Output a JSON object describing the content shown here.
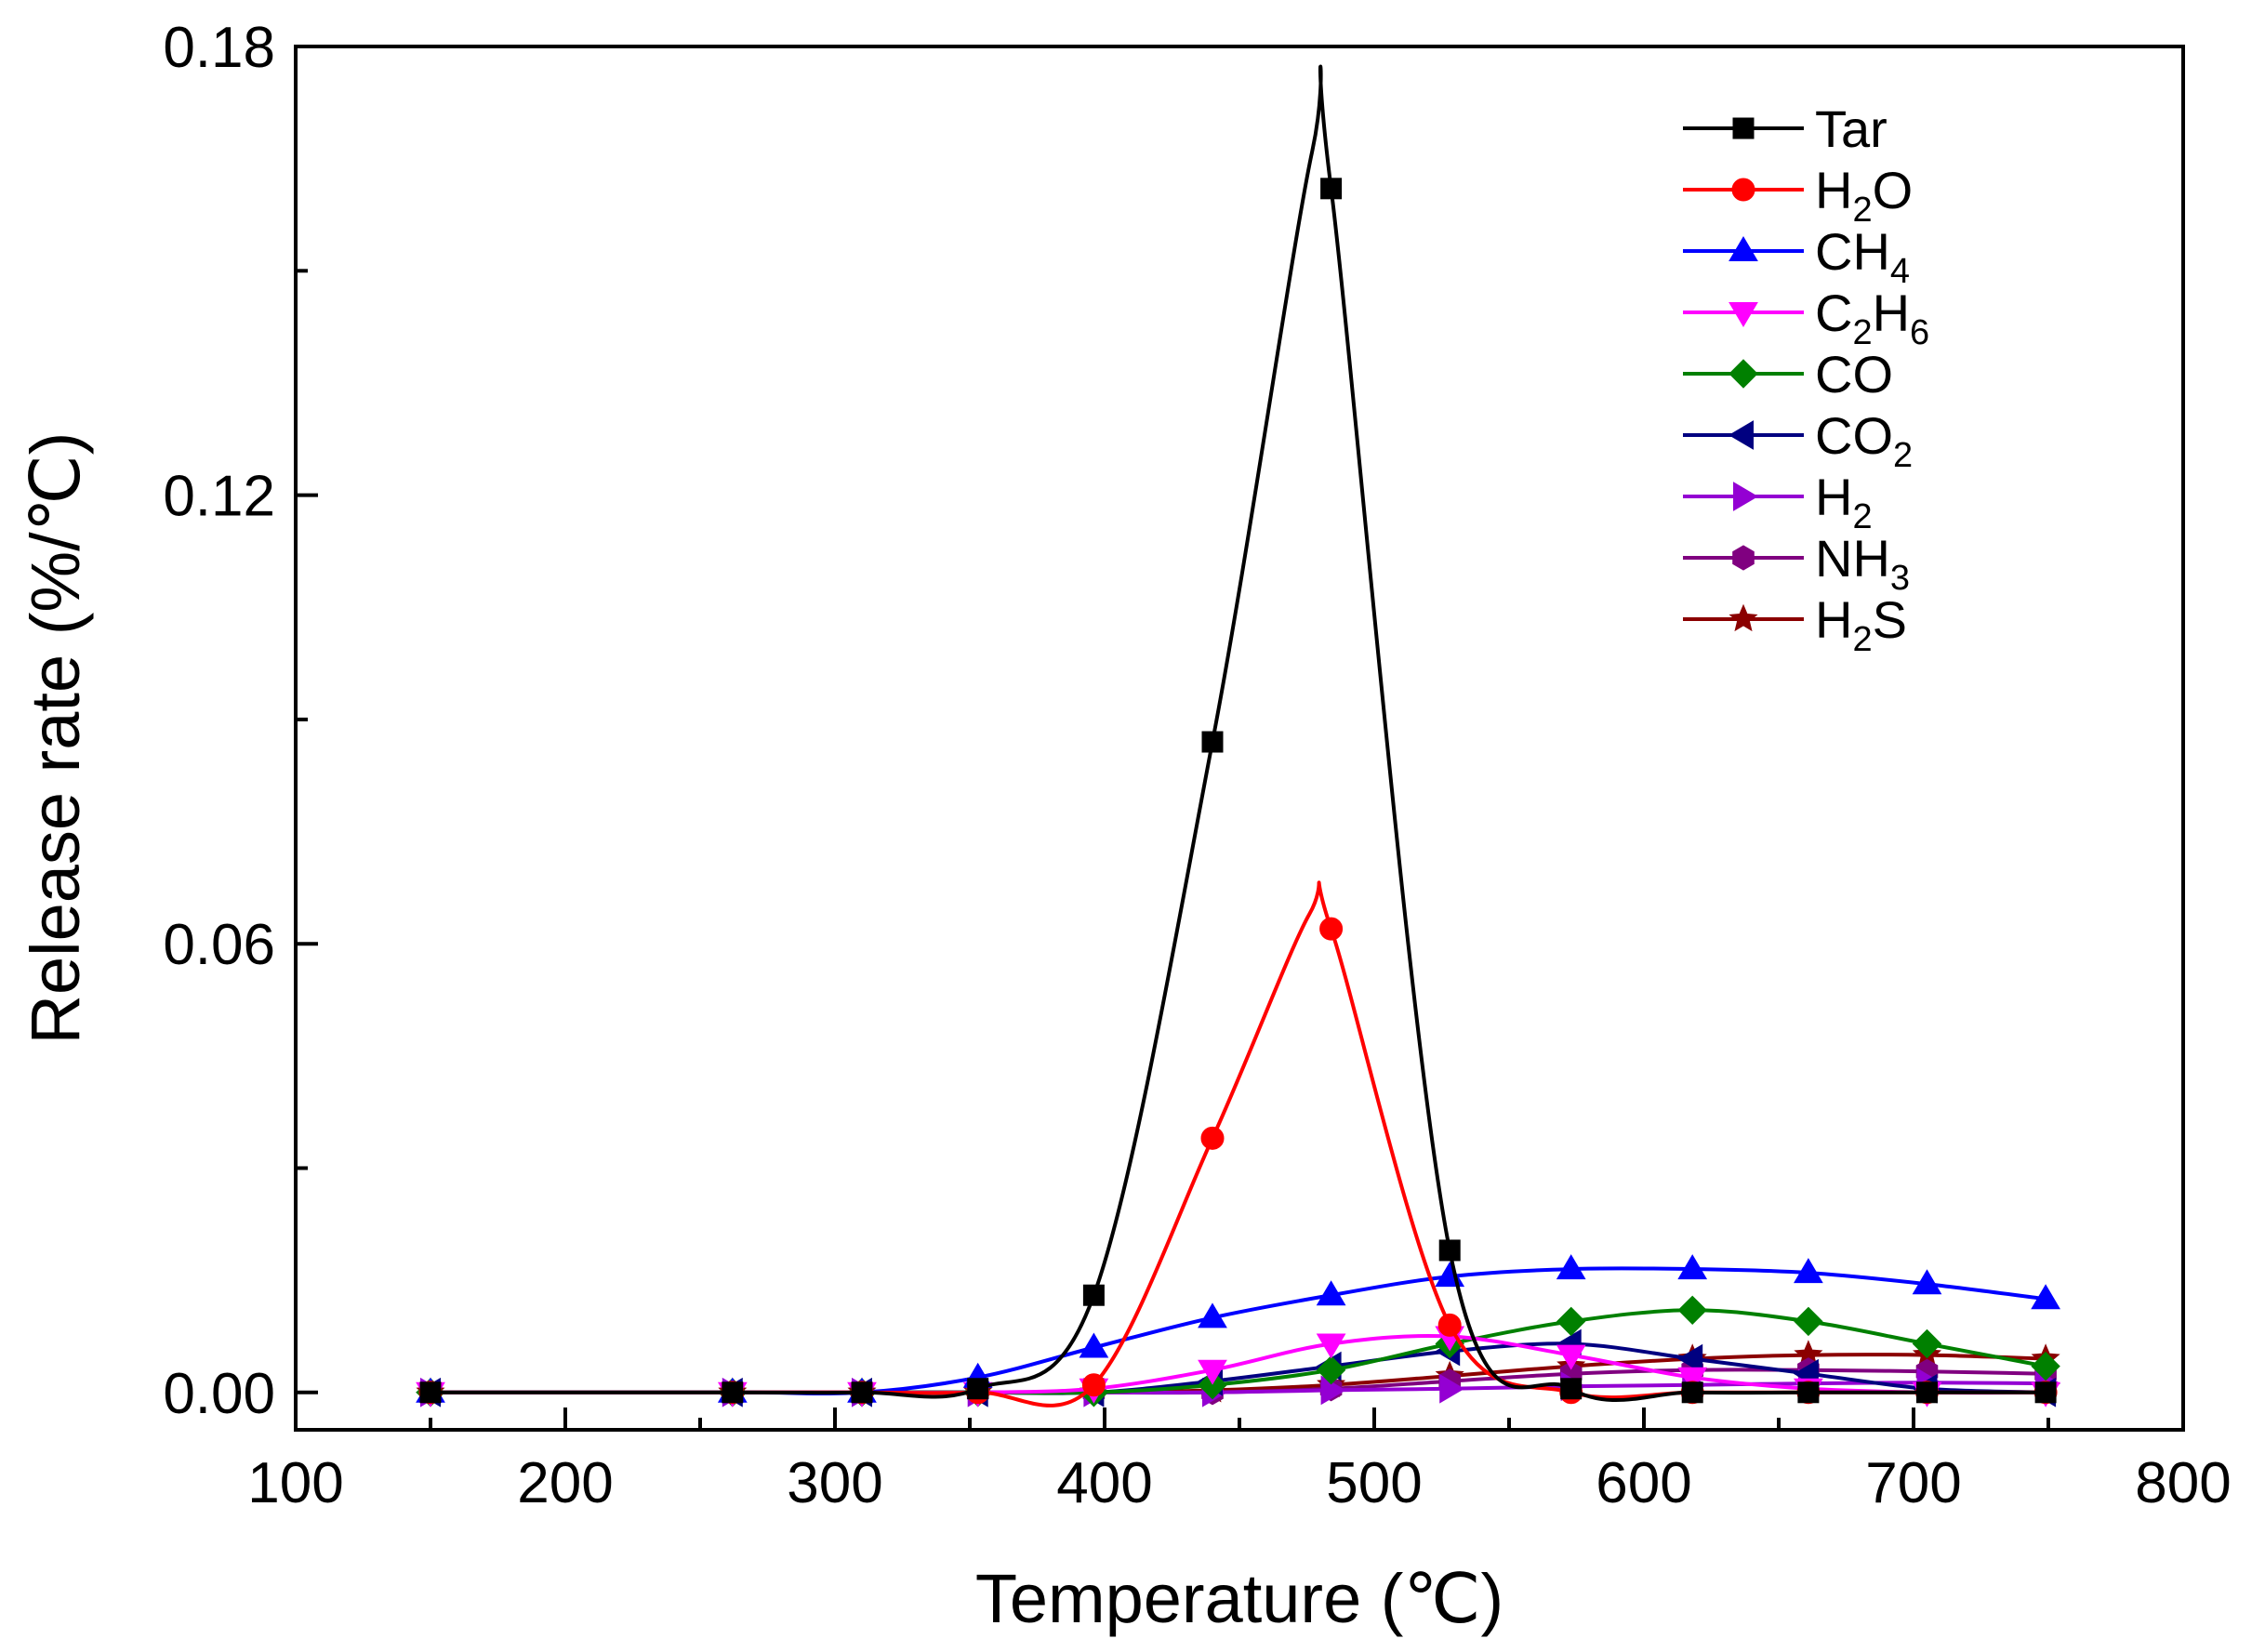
{
  "chart_data": {
    "type": "line",
    "xlabel": "Temperature (℃)",
    "ylabel": "Release rate (%/℃)",
    "xlim": [
      100,
      800
    ],
    "ylim": [
      -0.005,
      0.18
    ],
    "xticks": [
      100,
      200,
      300,
      400,
      500,
      600,
      700,
      800
    ],
    "xtick_labels": [
      "100",
      "200",
      "300",
      "400",
      "500",
      "600",
      "700",
      "800"
    ],
    "yticks": [
      0,
      0.06,
      0.12,
      0.18
    ],
    "ytick_labels": [
      "0.00",
      "0.06",
      "0.12",
      "0.18"
    ],
    "grid": false,
    "legend_position": "top-right",
    "x": [
      150,
      262,
      310,
      353,
      396,
      440,
      484,
      528,
      573,
      618,
      661,
      705,
      749
    ],
    "series": [
      {
        "name": "Tar",
        "base": "Tar",
        "sub": "",
        "base2": "",
        "sub2": "",
        "color": "#000000",
        "marker": "square",
        "values": [
          0,
          0,
          0,
          0.0005,
          0.013,
          0.087,
          0.161,
          0.019,
          0.0005,
          0,
          0,
          0,
          0
        ],
        "peak": {
          "x": 477,
          "y": 0.166
        }
      },
      {
        "name": "H2O",
        "base": "H",
        "sub": "2",
        "base2": "O",
        "sub2": "",
        "color": "#ff0000",
        "marker": "circle",
        "values": [
          0,
          0,
          0,
          0,
          0.001,
          0.034,
          0.062,
          0.009,
          0,
          0,
          0,
          0,
          0
        ],
        "peak": {
          "x": 476,
          "y": 0.064
        }
      },
      {
        "name": "CH4",
        "base": "CH",
        "sub": "4",
        "base2": "",
        "sub2": "",
        "color": "#0000ff",
        "marker": "triangle-up",
        "values": [
          0,
          0,
          0,
          0.002,
          0.006,
          0.01,
          0.013,
          0.0155,
          0.0165,
          0.0165,
          0.016,
          0.0145,
          0.0125
        ]
      },
      {
        "name": "C2H6",
        "base": "C",
        "sub": "2",
        "base2": "H",
        "sub2": "6",
        "color": "#ff00ff",
        "marker": "triangle-down",
        "values": [
          0,
          0,
          0,
          0,
          0.0005,
          0.003,
          0.0065,
          0.0075,
          0.005,
          0.002,
          0.0005,
          0,
          0
        ]
      },
      {
        "name": "CO",
        "base": "CO",
        "sub": "",
        "base2": "",
        "sub2": "",
        "color": "#008000",
        "marker": "diamond",
        "values": [
          0,
          0,
          0,
          0,
          0,
          0.001,
          0.003,
          0.0065,
          0.0095,
          0.011,
          0.0095,
          0.0065,
          0.0035
        ]
      },
      {
        "name": "CO2",
        "base": "CO",
        "sub": "2",
        "base2": "",
        "sub2": "",
        "color": "#000080",
        "marker": "triangle-left",
        "values": [
          0,
          0,
          0,
          0,
          0,
          0.0015,
          0.0035,
          0.0055,
          0.0065,
          0.0045,
          0.0025,
          0.0005,
          0
        ]
      },
      {
        "name": "H2",
        "base": "H",
        "sub": "2",
        "base2": "",
        "sub2": "",
        "color": "#9400d3",
        "marker": "triangle-right",
        "values": [
          0,
          0,
          0,
          0,
          0,
          0,
          0.0003,
          0.0005,
          0.0008,
          0.001,
          0.0012,
          0.0013,
          0.0012
        ]
      },
      {
        "name": "NH3",
        "base": "NH",
        "sub": "3",
        "base2": "",
        "sub2": "",
        "color": "#800080",
        "marker": "hexagon",
        "values": [
          0,
          0,
          0,
          0,
          0,
          0,
          0.0005,
          0.0015,
          0.0025,
          0.003,
          0.003,
          0.0028,
          0.0025
        ]
      },
      {
        "name": "H2S",
        "base": "H",
        "sub": "2",
        "base2": "S",
        "sub2": "",
        "color": "#8b0000",
        "marker": "star",
        "values": [
          0,
          0,
          0,
          0,
          0,
          0.0003,
          0.001,
          0.0022,
          0.0035,
          0.0045,
          0.005,
          0.005,
          0.0045
        ]
      }
    ]
  }
}
